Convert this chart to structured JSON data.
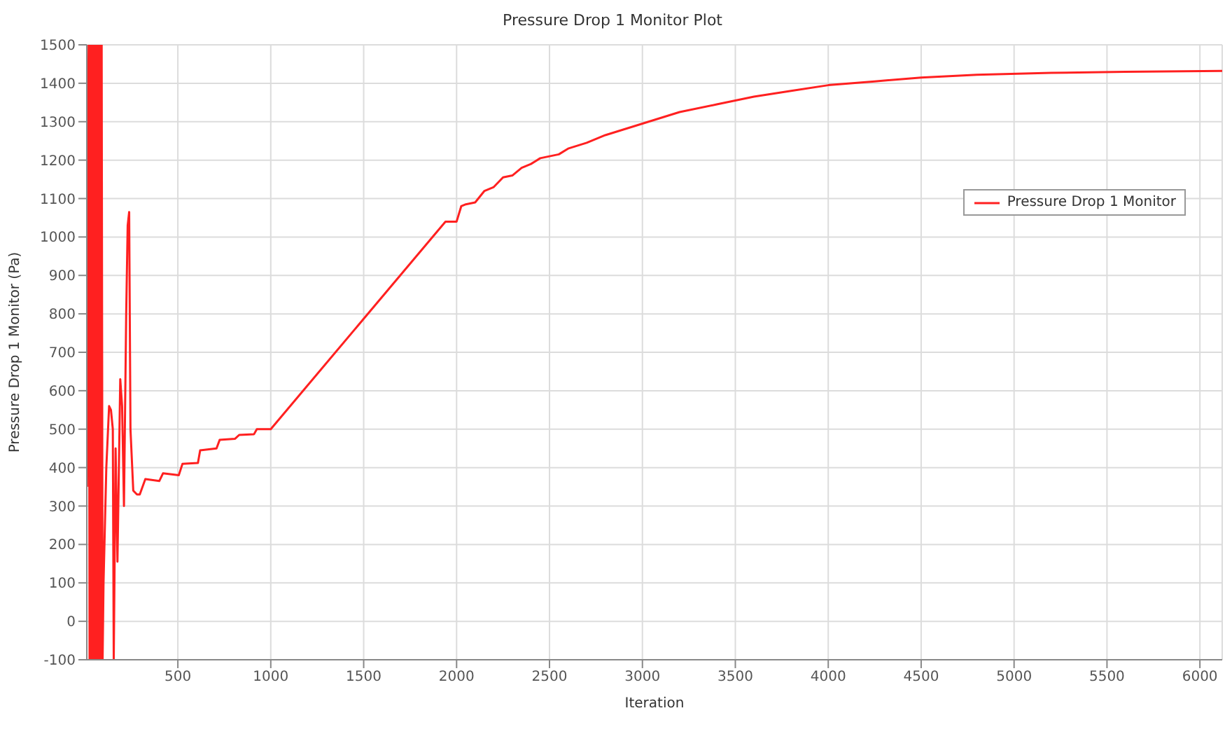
{
  "chart_data": {
    "type": "line",
    "title": "Pressure Drop 1 Monitor Plot",
    "xlabel": "Iteration",
    "ylabel": "Pressure Drop 1 Monitor (Pa)",
    "xlim": [
      10,
      6120
    ],
    "ylim": [
      -100,
      1500
    ],
    "xticks": [
      500,
      1000,
      1500,
      2000,
      2500,
      3000,
      3500,
      4000,
      4500,
      5000,
      5500,
      6000
    ],
    "yticks": [
      -100,
      0,
      100,
      200,
      300,
      400,
      500,
      600,
      700,
      800,
      900,
      1000,
      1100,
      1200,
      1300,
      1400,
      1500
    ],
    "grid": true,
    "legend": "right",
    "series": [
      {
        "name": "Pressure Drop 1 Monitor",
        "color": "#ff2020",
        "x": [
          12,
          16,
          20,
          25,
          30,
          35,
          40,
          45,
          50,
          55,
          60,
          65,
          70,
          75,
          80,
          85,
          90,
          95,
          100,
          115,
          130,
          140,
          150,
          155,
          165,
          175,
          190,
          200,
          210,
          222,
          230,
          238,
          245,
          260,
          280,
          295,
          325,
          400,
          420,
          505,
          525,
          608,
          620,
          708,
          725,
          808,
          830,
          910,
          925,
          1000,
          1940,
          2000,
          2025,
          2050,
          2100,
          2150,
          2200,
          2250,
          2300,
          2350,
          2400,
          2450,
          2550,
          2600,
          2700,
          2800,
          2900,
          3000,
          3100,
          3200,
          3400,
          3600,
          3800,
          4000,
          4250,
          4500,
          4800,
          5200,
          5600,
          6120
        ],
        "values": [
          350,
          1220,
          1500,
          -100,
          1500,
          -100,
          1500,
          -100,
          1500,
          -100,
          1500,
          -100,
          1500,
          -100,
          1500,
          -100,
          1500,
          -100,
          100,
          400,
          560,
          550,
          500,
          -100,
          450,
          155,
          630,
          560,
          300,
          800,
          1030,
          1065,
          500,
          340,
          330,
          330,
          370,
          365,
          385,
          380,
          410,
          412,
          445,
          450,
          472,
          475,
          485,
          487,
          500,
          500,
          1040,
          1040,
          1080,
          1085,
          1090,
          1120,
          1130,
          1155,
          1160,
          1180,
          1190,
          1205,
          1215,
          1230,
          1245,
          1265,
          1280,
          1295,
          1310,
          1325,
          1345,
          1365,
          1380,
          1395,
          1405,
          1415,
          1422,
          1427,
          1430,
          1432
        ]
      }
    ]
  }
}
